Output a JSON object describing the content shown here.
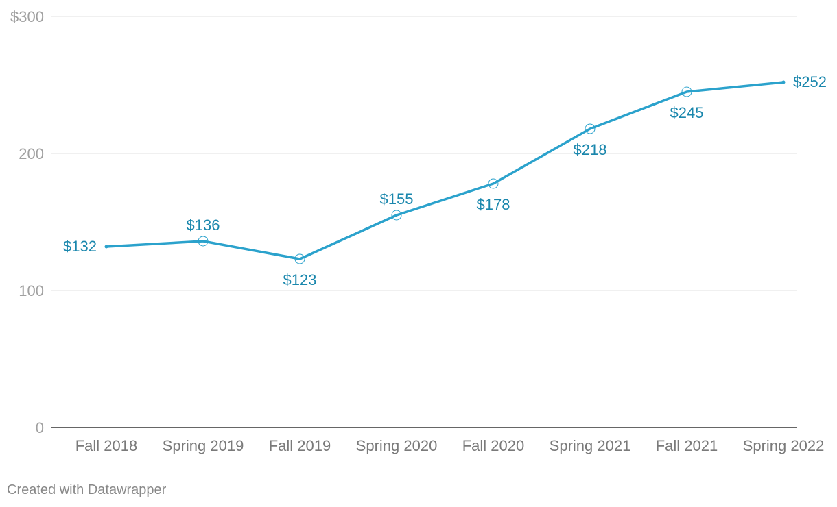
{
  "chart_data": {
    "type": "line",
    "title": "",
    "xlabel": "",
    "ylabel": "",
    "categories": [
      "Fall 2018",
      "Spring 2019",
      "Fall 2019",
      "Spring 2020",
      "Fall 2020",
      "Spring 2021",
      "Fall 2021",
      "Spring 2022"
    ],
    "series": [
      {
        "name": "Price",
        "values": [
          132,
          136,
          123,
          155,
          178,
          218,
          245,
          252
        ],
        "labels": [
          "$132",
          "$136",
          "$123",
          "$155",
          "$178",
          "$218",
          "$245",
          "$252"
        ],
        "label_positions": [
          "left",
          "above",
          "below",
          "above",
          "below",
          "below",
          "below",
          "right"
        ]
      }
    ],
    "ylim": [
      0,
      300
    ],
    "yticks": [
      0,
      100,
      200,
      300
    ],
    "ytick_labels": [
      "0",
      "100",
      "200",
      "$300"
    ],
    "grid": true,
    "colors": {
      "line": "#2ba2cc",
      "label": "#1a87ad",
      "grid": "#e0e0e0",
      "axis": "#333333"
    }
  },
  "footer": {
    "credit": "Created with Datawrapper"
  }
}
